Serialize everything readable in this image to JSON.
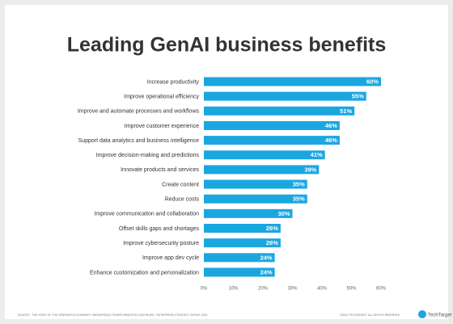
{
  "chart_data": {
    "type": "hbar",
    "title": "Leading GenAI business benefits",
    "categories": [
      "Increase productivity",
      "Improve operational efficiency",
      "Improve and automate processes and workflows",
      "Improve customer experience",
      "Support data analytics and business intelligence",
      "Improve decision-making and predictions",
      "Innovate products and services",
      "Create content",
      "Reduce costs",
      "Improve communication and collaboration",
      "Offset skills gaps and shortages",
      "Improve cybersecurity posture",
      "Improve app dev cycle",
      "Enhance customization and personalization"
    ],
    "values": [
      60,
      55,
      51,
      46,
      46,
      41,
      39,
      35,
      35,
      30,
      26,
      26,
      24,
      24
    ],
    "value_labels": [
      "60%",
      "55%",
      "51%",
      "46%",
      "46%",
      "41%",
      "39%",
      "35%",
      "35%",
      "30%",
      "26%",
      "26%",
      "24%",
      "24%"
    ],
    "color": "#1aa7e0",
    "xlim": [
      0,
      60
    ],
    "xticks": [
      {
        "value": 0,
        "label": "0%"
      },
      {
        "value": 10,
        "label": "10%"
      },
      {
        "value": 20,
        "label": "20%"
      },
      {
        "value": 30,
        "label": "30%"
      },
      {
        "value": 40,
        "label": "40%"
      },
      {
        "value": 50,
        "label": "50%"
      },
      {
        "value": 60,
        "label": "60%"
      }
    ],
    "source": "SOURCE: \"THE STATE OF THE GENERATIVE AI MARKET: WIDESPREAD TRANSFORMATION CONTINUES,\" ENTERPRISE STRATEGY GROUP, 2024",
    "copyright": "©2024 TECHTARGET. ALL RIGHTS RESERVED",
    "logo": "TechTarget"
  }
}
